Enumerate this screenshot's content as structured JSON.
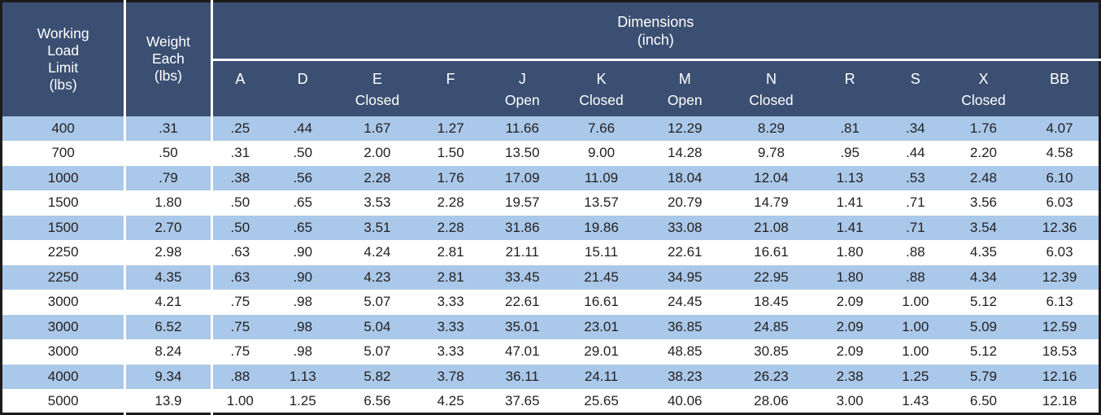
{
  "colors": {
    "header_bg": "#3b4f72",
    "stripe_bg": "#aac8e9",
    "border": "#1c1c1c",
    "header_text": "#ffffff",
    "body_text": "#231f20"
  },
  "header": {
    "col1_lines": [
      "Working",
      "Load",
      "Limit",
      "(lbs)"
    ],
    "col2_lines": [
      "Weight",
      "Each",
      "(lbs)"
    ],
    "group_title": "Dimensions",
    "group_subtitle": "(inch)",
    "dim_columns": [
      {
        "letter": "A",
        "state": ""
      },
      {
        "letter": "D",
        "state": ""
      },
      {
        "letter": "E",
        "state": "Closed"
      },
      {
        "letter": "F",
        "state": ""
      },
      {
        "letter": "J",
        "state": "Open"
      },
      {
        "letter": "K",
        "state": "Closed"
      },
      {
        "letter": "M",
        "state": "Open"
      },
      {
        "letter": "N",
        "state": "Closed"
      },
      {
        "letter": "R",
        "state": ""
      },
      {
        "letter": "S",
        "state": ""
      },
      {
        "letter": "X",
        "state": "Closed"
      },
      {
        "letter": "BB",
        "state": ""
      }
    ]
  },
  "chart_data": {
    "type": "table",
    "title": "Dimensions (inch)",
    "columns": [
      "Working Load Limit (lbs)",
      "Weight Each (lbs)",
      "A",
      "D",
      "E Closed",
      "F",
      "J Open",
      "K Closed",
      "M Open",
      "N Closed",
      "R",
      "S",
      "X Closed",
      "BB"
    ],
    "rows": [
      [
        "400",
        ".31",
        ".25",
        ".44",
        "1.67",
        "1.27",
        "11.66",
        "7.66",
        "12.29",
        "8.29",
        ".81",
        ".34",
        "1.76",
        "4.07"
      ],
      [
        "700",
        ".50",
        ".31",
        ".50",
        "2.00",
        "1.50",
        "13.50",
        "9.00",
        "14.28",
        "9.78",
        ".95",
        ".44",
        "2.20",
        "4.58"
      ],
      [
        "1000",
        ".79",
        ".38",
        ".56",
        "2.28",
        "1.76",
        "17.09",
        "11.09",
        "18.04",
        "12.04",
        "1.13",
        ".53",
        "2.48",
        "6.10"
      ],
      [
        "1500",
        "1.80",
        ".50",
        ".65",
        "3.53",
        "2.28",
        "19.57",
        "13.57",
        "20.79",
        "14.79",
        "1.41",
        ".71",
        "3.56",
        "6.03"
      ],
      [
        "1500",
        "2.70",
        ".50",
        ".65",
        "3.51",
        "2.28",
        "31.86",
        "19.86",
        "33.08",
        "21.08",
        "1.41",
        ".71",
        "3.54",
        "12.36"
      ],
      [
        "2250",
        "2.98",
        ".63",
        ".90",
        "4.24",
        "2.81",
        "21.11",
        "15.11",
        "22.61",
        "16.61",
        "1.80",
        ".88",
        "4.35",
        "6.03"
      ],
      [
        "2250",
        "4.35",
        ".63",
        ".90",
        "4.23",
        "2.81",
        "33.45",
        "21.45",
        "34.95",
        "22.95",
        "1.80",
        ".88",
        "4.34",
        "12.39"
      ],
      [
        "3000",
        "4.21",
        ".75",
        ".98",
        "5.07",
        "3.33",
        "22.61",
        "16.61",
        "24.45",
        "18.45",
        "2.09",
        "1.00",
        "5.12",
        "6.13"
      ],
      [
        "3000",
        "6.52",
        ".75",
        ".98",
        "5.04",
        "3.33",
        "35.01",
        "23.01",
        "36.85",
        "24.85",
        "2.09",
        "1.00",
        "5.09",
        "12.59"
      ],
      [
        "3000",
        "8.24",
        ".75",
        ".98",
        "5.07",
        "3.33",
        "47.01",
        "29.01",
        "48.85",
        "30.85",
        "2.09",
        "1.00",
        "5.12",
        "18.53"
      ],
      [
        "4000",
        "9.34",
        ".88",
        "1.13",
        "5.82",
        "3.78",
        "36.11",
        "24.11",
        "38.23",
        "26.23",
        "2.38",
        "1.25",
        "5.79",
        "12.16"
      ],
      [
        "5000",
        "13.9",
        "1.00",
        "1.25",
        "6.56",
        "4.25",
        "37.65",
        "25.65",
        "40.06",
        "28.06",
        "3.00",
        "1.43",
        "6.50",
        "12.18"
      ]
    ]
  }
}
